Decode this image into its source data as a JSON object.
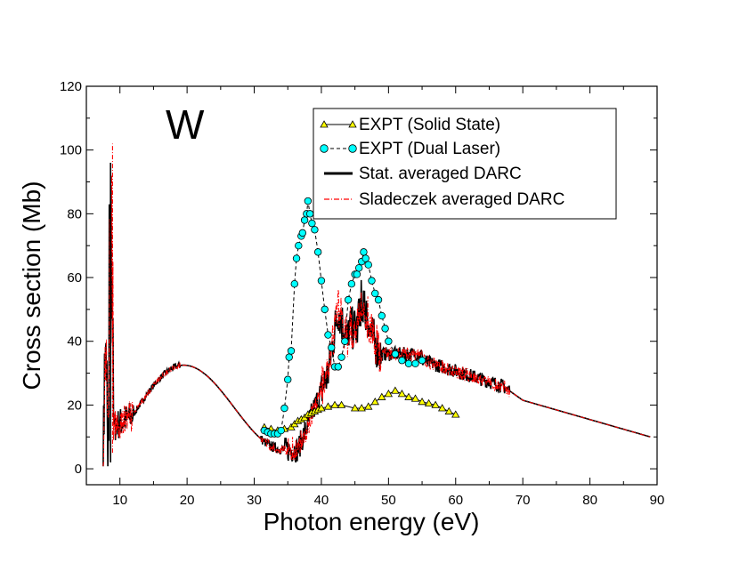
{
  "chart_data": {
    "type": "line",
    "title": "",
    "annotation": "W",
    "xlabel": "Photon energy (eV)",
    "ylabel": "Cross section (Mb)",
    "xlim": [
      5,
      90
    ],
    "ylim": [
      -5,
      120
    ],
    "xticks": [
      10,
      20,
      30,
      40,
      50,
      60,
      70,
      80,
      90
    ],
    "yticks": [
      0,
      20,
      40,
      60,
      80,
      100,
      120
    ],
    "legend_position": "top-right",
    "colors": {
      "solid_state_marker": "#ffff00",
      "dual_laser_marker": "#00ffff",
      "stat_line": "#000000",
      "sladeczek_line": "#ff0000"
    },
    "series": [
      {
        "name": "EXPT (Solid State)",
        "style": "triangle-markers-solid-line",
        "x": [
          31.5,
          32.5,
          33.5,
          34.5,
          35.5,
          36.0,
          36.5,
          37.0,
          37.5,
          38.0,
          38.5,
          39.0,
          39.5,
          40.0,
          41.0,
          42.0,
          43.0,
          45.0,
          46.0,
          47.0,
          48.0,
          49.0,
          50.0,
          51.0,
          52.0,
          53.0,
          54.0,
          55.0,
          56.0,
          57.0,
          58.0,
          59.0,
          60.0
        ],
        "y": [
          13,
          12.5,
          12,
          12.5,
          13,
          14,
          15,
          15.5,
          16,
          17,
          17.5,
          18,
          18.5,
          19,
          19.5,
          20,
          20,
          19,
          19,
          19.5,
          21,
          22.5,
          23.5,
          24.5,
          23.5,
          22.5,
          22,
          21,
          20.5,
          20,
          19,
          18,
          17
        ]
      },
      {
        "name": "EXPT (Dual Laser)",
        "style": "circle-markers-dashed-line",
        "x": [
          31.5,
          32.0,
          32.5,
          33.0,
          33.5,
          34.0,
          34.5,
          35.0,
          35.2,
          35.5,
          36.0,
          36.3,
          36.6,
          37.0,
          37.2,
          37.5,
          37.8,
          38.0,
          38.3,
          38.6,
          39.0,
          39.5,
          40.0,
          40.5,
          41.0,
          41.5,
          42.0,
          42.5,
          43.0,
          43.5,
          44.0,
          44.5,
          45.0,
          45.3,
          45.6,
          46.0,
          46.3,
          46.6,
          47.0,
          47.5,
          48.0,
          48.5,
          49.0,
          49.5,
          50.0,
          51.0,
          52.0,
          53.0,
          54.0,
          55.0
        ],
        "y": [
          12,
          11.5,
          11,
          11,
          11,
          12,
          19,
          28,
          35,
          37,
          58,
          66,
          70,
          73,
          74,
          78,
          80,
          84,
          80,
          77,
          75,
          68,
          59,
          50,
          42,
          38,
          32,
          32,
          35,
          40,
          53,
          58,
          61,
          61,
          63,
          65,
          68,
          66,
          64,
          59,
          55,
          53,
          48,
          44,
          40,
          36,
          34,
          33,
          33,
          34
        ]
      },
      {
        "name": "Stat. averaged DARC",
        "style": "solid-line"
      },
      {
        "name": "Sladeczek averaged DARC",
        "style": "dash-dot-line"
      }
    ]
  }
}
